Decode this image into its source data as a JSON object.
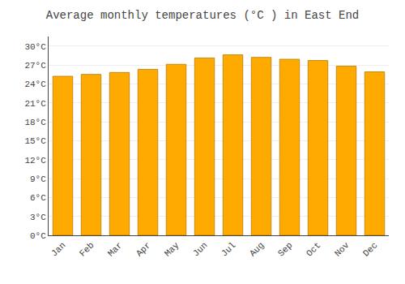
{
  "chart_data": {
    "type": "bar",
    "title": "Average monthly temperatures (°C ) in East End",
    "categories": [
      "Jan",
      "Feb",
      "Mar",
      "Apr",
      "May",
      "Jun",
      "Jul",
      "Aug",
      "Sep",
      "Oct",
      "Nov",
      "Dec"
    ],
    "values": [
      25.2,
      25.5,
      25.8,
      26.3,
      27.1,
      28.1,
      28.6,
      28.2,
      27.9,
      27.7,
      26.8,
      25.9
    ],
    "color": "#FFAA00",
    "ylim": [
      0,
      31.5
    ],
    "yticks": [
      {
        "value": 0,
        "label": "0°C"
      },
      {
        "value": 3,
        "label": "3°C"
      },
      {
        "value": 6,
        "label": "6°C"
      },
      {
        "value": 9,
        "label": "9°C"
      },
      {
        "value": 12,
        "label": "12°C"
      },
      {
        "value": 15,
        "label": "15°C"
      },
      {
        "value": 18,
        "label": "18°C"
      },
      {
        "value": 21,
        "label": "21°C"
      },
      {
        "value": 24,
        "label": "24°C"
      },
      {
        "value": 27,
        "label": "27°C"
      },
      {
        "value": 30,
        "label": "30°C"
      }
    ],
    "grid": true
  }
}
